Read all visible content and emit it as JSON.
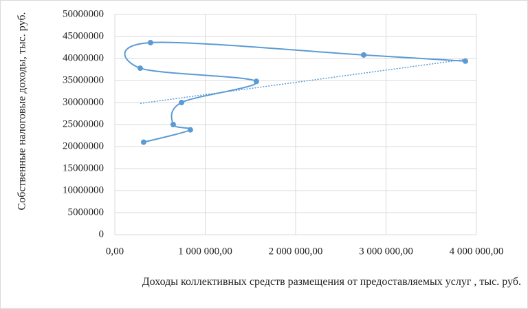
{
  "chart_data": {
    "type": "scatter-smooth",
    "x_title": "Доходы коллективных средств размещения от предоставляемых услуг , тыс. руб.",
    "y_title": "Собственные налоговые доходы, тыс. руб.",
    "series": [
      {
        "color": "#5b9bd5",
        "x": [
          319000,
          836000,
          646000,
          738000,
          1566000,
          281000,
          395000,
          2753000,
          3878000
        ],
        "values": [
          21000000,
          23800000,
          25000000,
          30000000,
          34800000,
          37800000,
          43600000,
          40800000,
          39400000
        ]
      }
    ],
    "trendline": {
      "color": "#5b9bd5",
      "x": [
        281000,
        3878000
      ],
      "values": [
        29800000,
        39800000
      ]
    },
    "xlim": [
      0,
      4000000
    ],
    "xticks": [
      {
        "value": 0,
        "label": "0,00"
      },
      {
        "value": 1000000,
        "label": "1 000 000,00"
      },
      {
        "value": 2000000,
        "label": "2 000 000,00"
      },
      {
        "value": 3000000,
        "label": "3 000 000,00"
      },
      {
        "value": 4000000,
        "label": "4 000 000,00"
      }
    ],
    "ylim": [
      0,
      50000000
    ],
    "yticks": [
      0,
      5000000,
      10000000,
      15000000,
      20000000,
      25000000,
      30000000,
      35000000,
      40000000,
      45000000,
      50000000
    ],
    "grid": true
  }
}
